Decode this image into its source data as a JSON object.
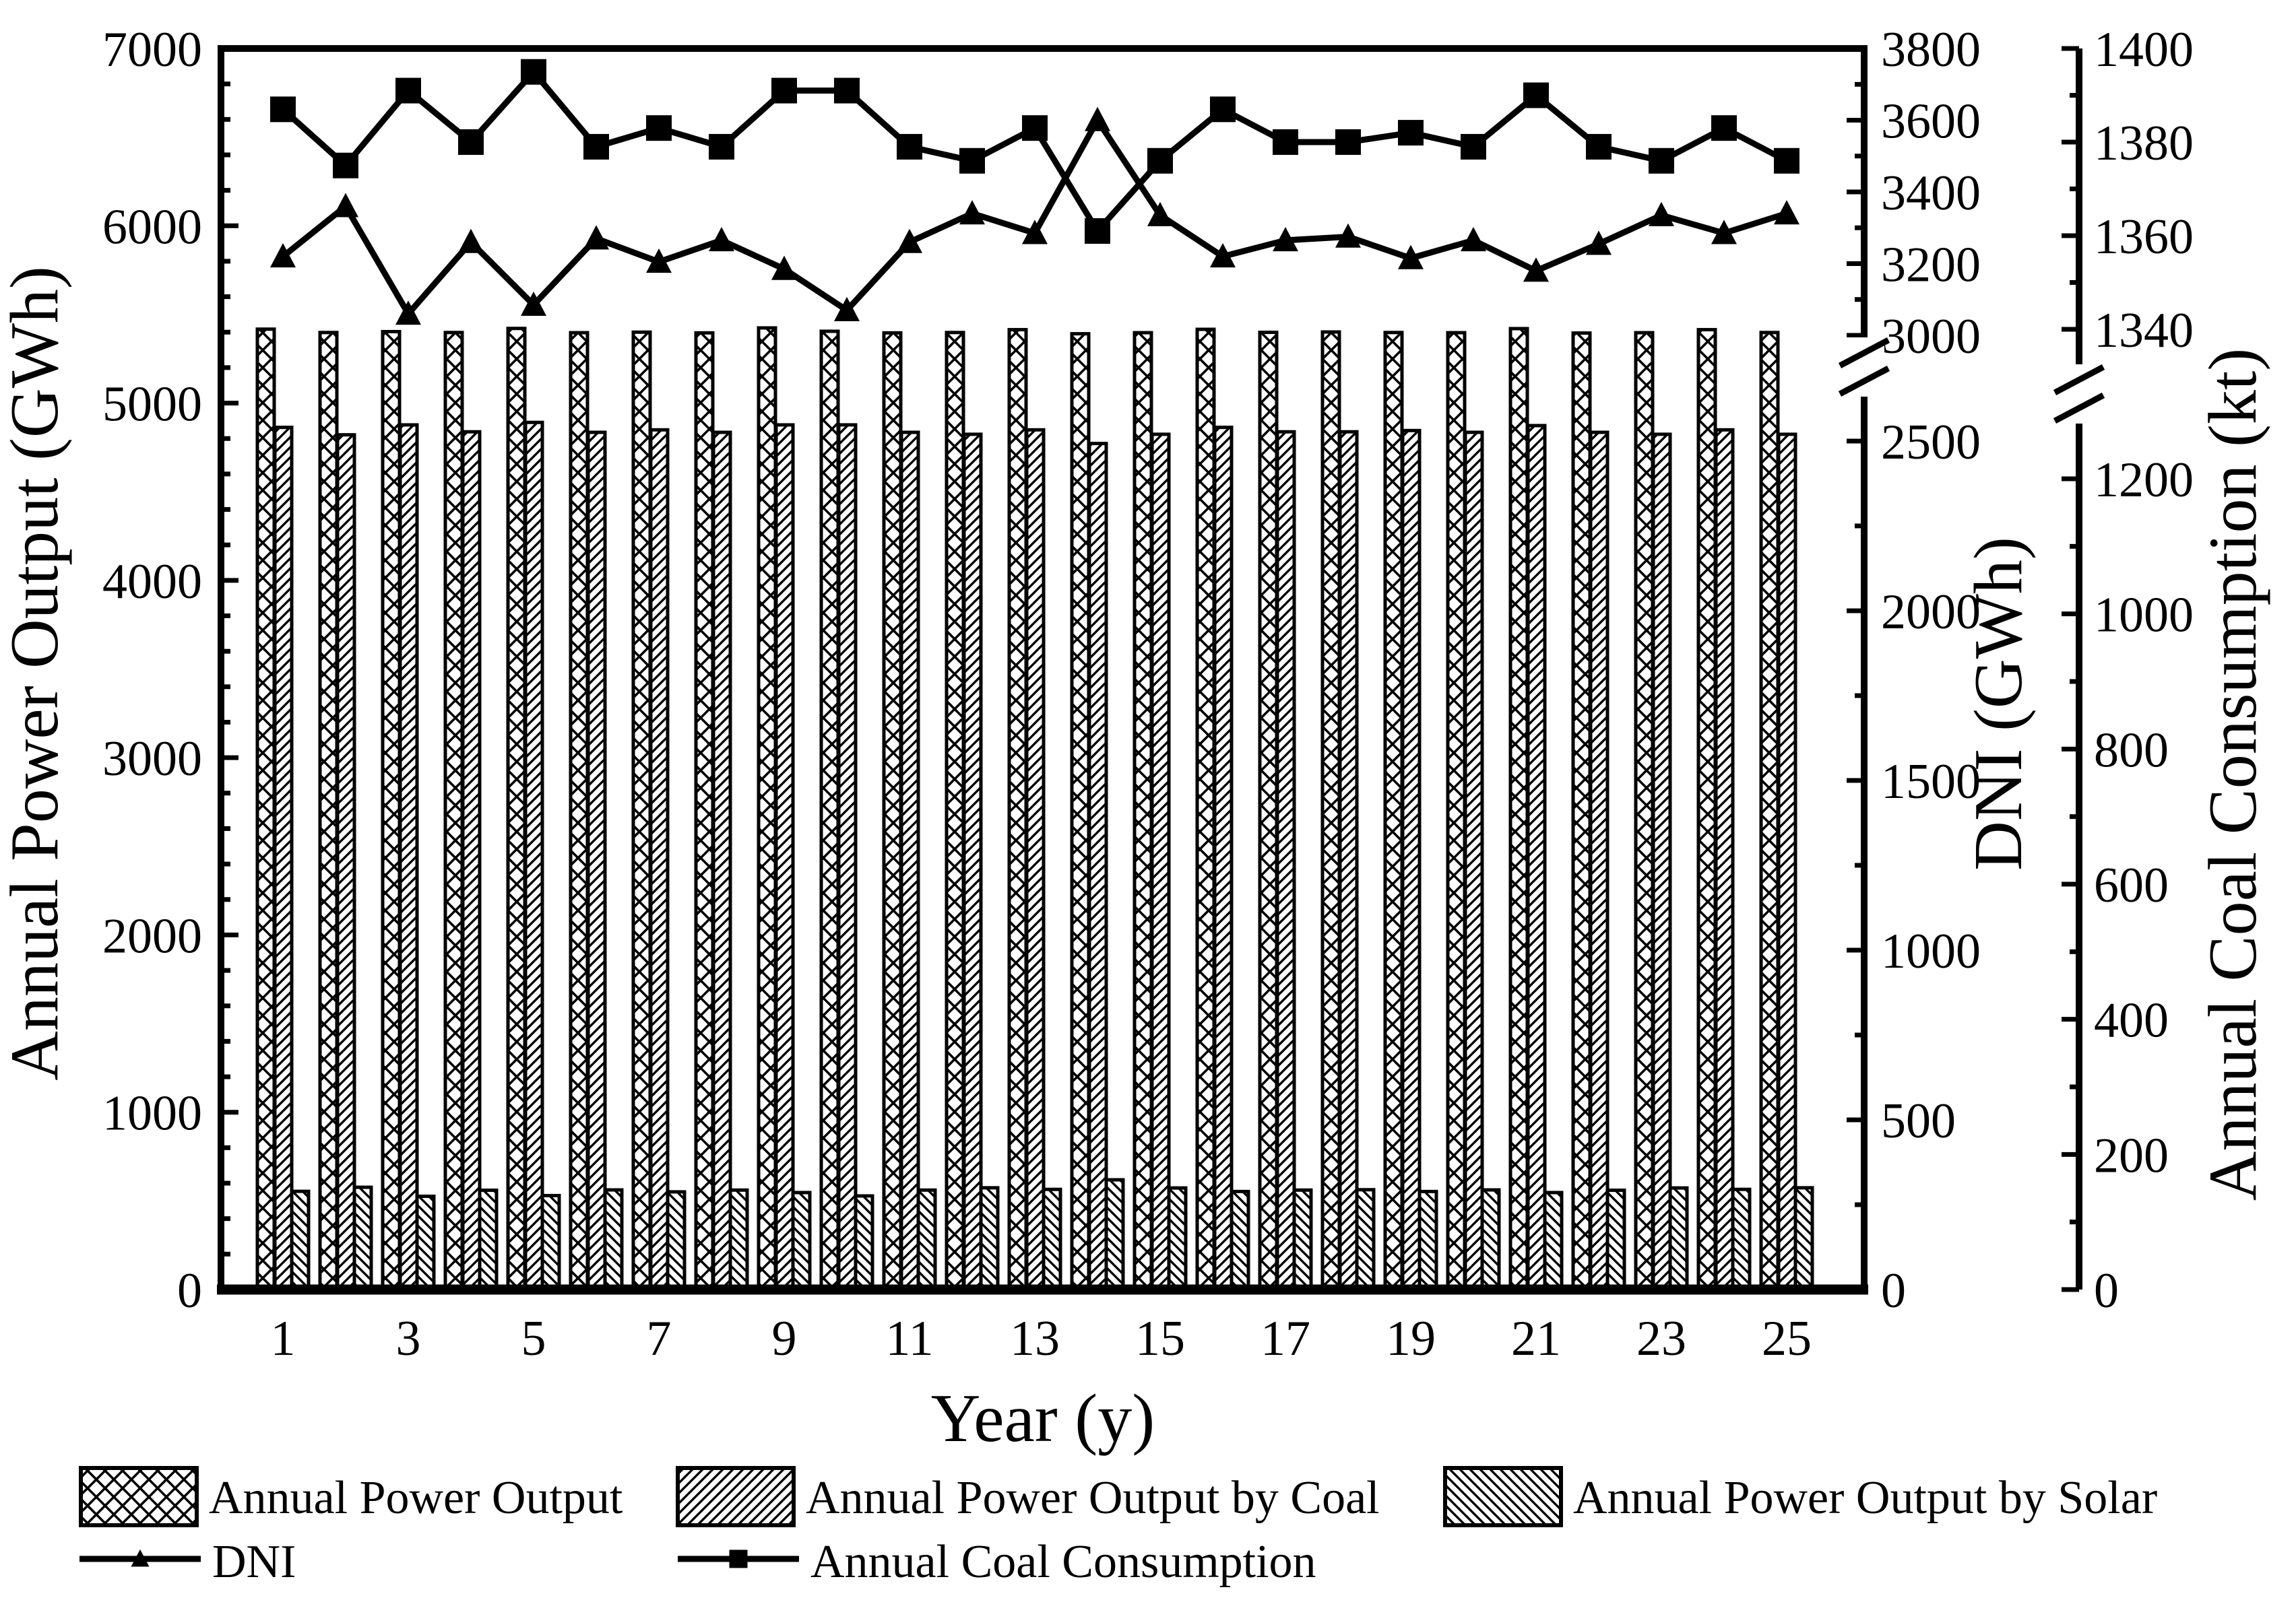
{
  "page": {
    "background": "#ffffff",
    "ink": "#000000"
  },
  "chart_data": {
    "type": "bar+line",
    "title": "",
    "xlabel": "Year (y)",
    "categories": [
      1,
      2,
      3,
      4,
      5,
      6,
      7,
      8,
      9,
      10,
      11,
      12,
      13,
      14,
      15,
      16,
      17,
      18,
      19,
      20,
      21,
      22,
      23,
      24,
      25
    ],
    "labeled_years": [
      1,
      3,
      5,
      7,
      9,
      11,
      13,
      15,
      17,
      19,
      21,
      23,
      25
    ],
    "axes": {
      "left": {
        "label": "Annual Power Output (GWh)",
        "range": [
          0,
          7000
        ],
        "major_ticks": [
          0,
          1000,
          2000,
          3000,
          4000,
          5000,
          6000,
          7000
        ],
        "minor_step": 200
      },
      "dni": {
        "label": "DNI (GWh)",
        "broken": true,
        "lower_ticks": [
          0,
          500,
          1000,
          1500,
          2000,
          2500
        ],
        "lower_minor_ticks": [
          250,
          750,
          1250,
          1750,
          2250
        ],
        "upper_ticks": [
          3000,
          3200,
          3400,
          3600,
          3800
        ],
        "upper_minor_ticks": [
          3100,
          3300,
          3500,
          3700
        ]
      },
      "coal": {
        "label": "Annual Coal Consumption (kt)",
        "broken": true,
        "lower_ticks": [
          0,
          200,
          400,
          600,
          800,
          1000,
          1200
        ],
        "lower_minor_ticks": [
          100,
          300,
          500,
          700,
          900,
          1100
        ],
        "upper_ticks": [
          1340,
          1360,
          1380,
          1400
        ],
        "upper_minor_ticks": [
          1350,
          1370,
          1390
        ]
      }
    },
    "series": [
      {
        "key": "total",
        "name": "Annual Power Output",
        "kind": "bar",
        "pattern": "crosshatch",
        "axis": "left",
        "values": [
          5417,
          5398,
          5403,
          5398,
          5421,
          5397,
          5400,
          5396,
          5424,
          5405,
          5396,
          5398,
          5414,
          5391,
          5397,
          5416,
          5399,
          5401,
          5398,
          5397,
          5420,
          5395,
          5397,
          5414,
          5398
        ]
      },
      {
        "key": "coal_power",
        "name": "Annual Power Output by Coal",
        "kind": "bar",
        "pattern": "hatch-fwd",
        "axis": "left",
        "values": [
          4863,
          4821,
          4877,
          4838,
          4891,
          4835,
          4849,
          4835,
          4877,
          4877,
          4835,
          4824,
          4849,
          4772,
          4824,
          4863,
          4838,
          4838,
          4845,
          4835,
          4873,
          4835,
          4824,
          4849,
          4824
        ]
      },
      {
        "key": "solar_power",
        "name": "Annual Power Output by Solar",
        "kind": "bar",
        "pattern": "hatch-back",
        "axis": "left",
        "values": [
          554,
          577,
          526,
          560,
          530,
          562,
          551,
          561,
          547,
          528,
          561,
          574,
          565,
          619,
          573,
          553,
          561,
          563,
          553,
          562,
          547,
          560,
          573,
          565,
          574
        ]
      },
      {
        "key": "dni",
        "name": "DNI",
        "kind": "line",
        "marker": "triangle",
        "axis": "dni",
        "values": [
          3220,
          3360,
          3060,
          3260,
          3085,
          3270,
          3205,
          3265,
          3185,
          3070,
          3260,
          3340,
          3285,
          3600,
          3335,
          3220,
          3265,
          3275,
          3215,
          3265,
          3180,
          3255,
          3335,
          3285,
          3340
        ]
      },
      {
        "key": "coal_cons",
        "name": "Annual Coal Consumption",
        "kind": "line",
        "marker": "square",
        "axis": "coal",
        "values": [
          1387,
          1375,
          1391,
          1380,
          1395,
          1379,
          1383,
          1379,
          1391,
          1391,
          1379,
          1376,
          1383,
          1361,
          1376,
          1387,
          1380,
          1380,
          1382,
          1379,
          1390,
          1379,
          1376,
          1383,
          1376
        ]
      }
    ],
    "legend_rows": [
      [
        "total",
        "coal_power",
        "solar_power"
      ],
      [
        "dni",
        "coal_cons"
      ]
    ]
  }
}
